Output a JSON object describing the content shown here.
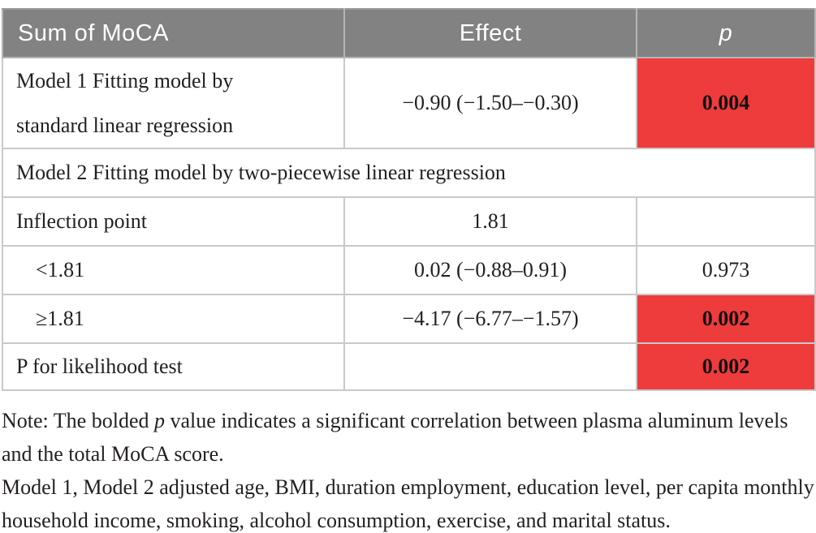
{
  "table": {
    "header": {
      "sum_of_moca": "Sum of MoCA",
      "effect": "Effect",
      "p": "p"
    },
    "rows": [
      {
        "label_line1": "Model 1 Fitting model by",
        "label_line2": "standard linear regression",
        "effect": "−0.90 (−1.50–−0.30)",
        "p": "0.004",
        "p_highlighted": true
      },
      {
        "label": "Model 2 Fitting model by two-piecewise linear regression",
        "spans_all_columns": true
      },
      {
        "label": "Inflection point",
        "effect": "1.81",
        "p": ""
      },
      {
        "label": "<1.81",
        "effect": "0.02 (−0.88–0.91)",
        "p": "0.973",
        "p_highlighted": false
      },
      {
        "label": "≥1.81",
        "effect": "−4.17 (−6.77–−1.57)",
        "p": "0.002",
        "p_highlighted": true
      },
      {
        "label": "P for likelihood test",
        "effect": "",
        "p": "0.002",
        "p_highlighted": true
      }
    ]
  },
  "notes": {
    "note1_prefix": "Note: The bolded ",
    "note1_italic": "p",
    "note1_suffix": " value indicates a significant correlation between plasma aluminum levels and the total MoCA score.",
    "note2": "Model 1, Model 2 adjusted age, BMI, duration employment, education level, per capita monthly household income, smoking, alcohol consumption, exercise, and marital status."
  },
  "colors": {
    "header_background": "#828283",
    "header_text": "#ffffff",
    "highlight_red": "#ee3b3c",
    "border_gray": "#c9c9c9",
    "body_text": "#231f20"
  }
}
